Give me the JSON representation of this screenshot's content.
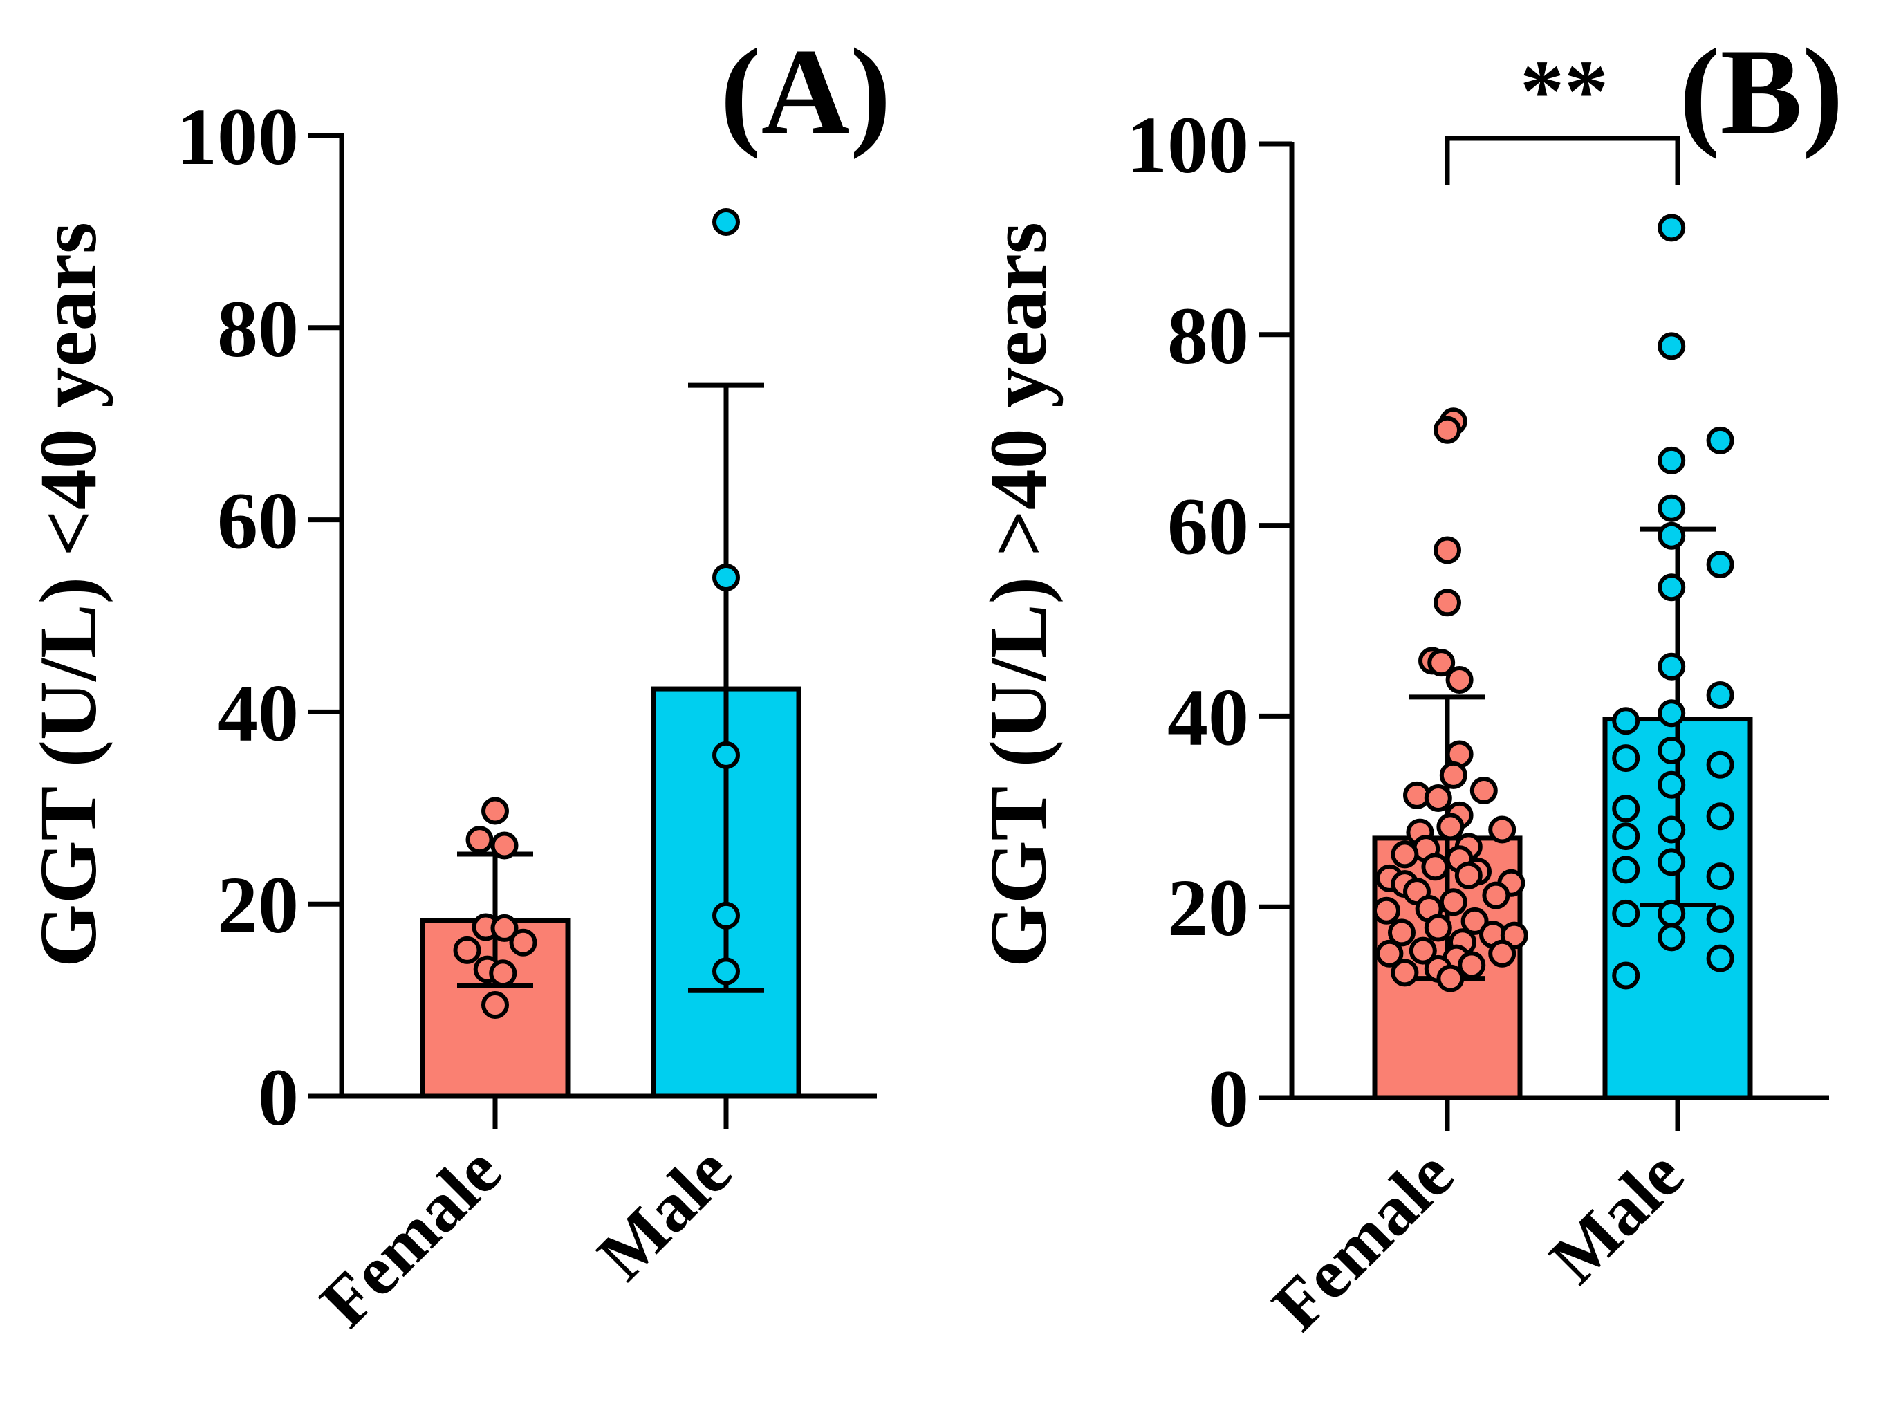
{
  "chart_data": [
    {
      "panel": "(A)",
      "type": "bar",
      "ylabel": "GGT (U/L) <40 years",
      "ylim": [
        0,
        100
      ],
      "yticks": [
        0,
        20,
        40,
        60,
        80,
        100
      ],
      "yticks_text": [
        "0",
        "20",
        "40",
        "60",
        "80",
        "100"
      ],
      "categories": [
        "Female",
        "Male"
      ],
      "bars": [
        {
          "name": "Female",
          "mean": 18.3,
          "error_low": 11.5,
          "error_high": 25.2,
          "color": "#FA8072",
          "points": [
            {
              "jitter": 0.0,
              "y": 29.7
            },
            {
              "jitter": -0.5,
              "y": 26.7
            },
            {
              "jitter": 0.3,
              "y": 26.1
            },
            {
              "jitter": -0.3,
              "y": 17.6
            },
            {
              "jitter": 0.3,
              "y": 17.5
            },
            {
              "jitter": -0.9,
              "y": 15.2
            },
            {
              "jitter": 0.9,
              "y": 16.0
            },
            {
              "jitter": -0.25,
              "y": 13.2
            },
            {
              "jitter": 0.25,
              "y": 12.8
            },
            {
              "jitter": 0.0,
              "y": 9.5
            }
          ]
        },
        {
          "name": "Male",
          "mean": 42.4,
          "error_low": 11.0,
          "error_high": 74.0,
          "color": "#00CFEF",
          "points": [
            {
              "jitter": 0.0,
              "y": 91.0
            },
            {
              "jitter": 0.0,
              "y": 54.0
            },
            {
              "jitter": 0.0,
              "y": 35.5
            },
            {
              "jitter": 0.0,
              "y": 18.8
            },
            {
              "jitter": 0.0,
              "y": 13.0
            }
          ]
        }
      ]
    },
    {
      "panel": "(B)",
      "type": "bar",
      "ylabel": "GGT (U/L) >40 years",
      "ylim": [
        0,
        100
      ],
      "yticks": [
        0,
        20,
        40,
        60,
        80,
        100
      ],
      "yticks_text": [
        "0",
        "20",
        "40",
        "60",
        "80",
        "100"
      ],
      "categories": [
        "Female",
        "Male"
      ],
      "significance": "**",
      "bars": [
        {
          "name": "Female",
          "mean": 27.2,
          "error_low": 12.5,
          "error_high": 42.0,
          "color": "#FA8072",
          "points": [
            {
              "jitter": 0.1,
              "y": 70.9
            },
            {
              "jitter": 0.0,
              "y": 70.0
            },
            {
              "jitter": 0.0,
              "y": 57.4
            },
            {
              "jitter": 0.0,
              "y": 51.9
            },
            {
              "jitter": -0.25,
              "y": 45.8
            },
            {
              "jitter": -0.1,
              "y": 45.6
            },
            {
              "jitter": 0.2,
              "y": 43.8
            },
            {
              "jitter": 0.2,
              "y": 36.0
            },
            {
              "jitter": 0.1,
              "y": 33.8
            },
            {
              "jitter": -0.5,
              "y": 31.7
            },
            {
              "jitter": -0.15,
              "y": 31.4
            },
            {
              "jitter": 0.6,
              "y": 32.2
            },
            {
              "jitter": 0.2,
              "y": 29.6
            },
            {
              "jitter": -0.45,
              "y": 27.8
            },
            {
              "jitter": 0.05,
              "y": 28.4
            },
            {
              "jitter": 0.9,
              "y": 28.1
            },
            {
              "jitter": -0.35,
              "y": 26.1
            },
            {
              "jitter": 0.35,
              "y": 26.3
            },
            {
              "jitter": -0.7,
              "y": 25.5
            },
            {
              "jitter": 0.2,
              "y": 25.0
            },
            {
              "jitter": -0.95,
              "y": 23.0
            },
            {
              "jitter": -0.2,
              "y": 24.2
            },
            {
              "jitter": 0.5,
              "y": 23.7
            },
            {
              "jitter": -0.7,
              "y": 22.4
            },
            {
              "jitter": 0.35,
              "y": 23.3
            },
            {
              "jitter": 1.05,
              "y": 22.5
            },
            {
              "jitter": -0.5,
              "y": 21.6
            },
            {
              "jitter": 0.1,
              "y": 20.5
            },
            {
              "jitter": 0.8,
              "y": 21.2
            },
            {
              "jitter": -1.0,
              "y": 19.6
            },
            {
              "jitter": -0.3,
              "y": 19.8
            },
            {
              "jitter": 0.45,
              "y": 18.5
            },
            {
              "jitter": -0.75,
              "y": 17.3
            },
            {
              "jitter": -0.15,
              "y": 17.8
            },
            {
              "jitter": 0.25,
              "y": 16.3
            },
            {
              "jitter": 0.75,
              "y": 17.1
            },
            {
              "jitter": 1.1,
              "y": 17.0
            },
            {
              "jitter": -0.95,
              "y": 15.1
            },
            {
              "jitter": -0.4,
              "y": 15.4
            },
            {
              "jitter": 0.15,
              "y": 14.6
            },
            {
              "jitter": 0.9,
              "y": 15.1
            },
            {
              "jitter": -0.7,
              "y": 13.1
            },
            {
              "jitter": -0.15,
              "y": 13.5
            },
            {
              "jitter": 0.4,
              "y": 13.9
            },
            {
              "jitter": 0.05,
              "y": 12.5
            }
          ]
        },
        {
          "name": "Male",
          "mean": 39.7,
          "error_low": 20.2,
          "error_high": 59.6,
          "color": "#00CFEF",
          "points": [
            {
              "jitter": -0.1,
              "y": 91.2
            },
            {
              "jitter": -0.1,
              "y": 78.8
            },
            {
              "jitter": 0.7,
              "y": 68.9
            },
            {
              "jitter": -0.1,
              "y": 66.8
            },
            {
              "jitter": -0.1,
              "y": 61.8
            },
            {
              "jitter": -0.1,
              "y": 58.9
            },
            {
              "jitter": 0.7,
              "y": 55.9
            },
            {
              "jitter": -0.1,
              "y": 53.5
            },
            {
              "jitter": -0.1,
              "y": 45.2
            },
            {
              "jitter": 0.7,
              "y": 42.2
            },
            {
              "jitter": -0.1,
              "y": 40.3
            },
            {
              "jitter": -0.85,
              "y": 39.5
            },
            {
              "jitter": -0.1,
              "y": 36.4
            },
            {
              "jitter": -0.85,
              "y": 35.6
            },
            {
              "jitter": 0.7,
              "y": 34.9
            },
            {
              "jitter": -0.1,
              "y": 32.8
            },
            {
              "jitter": -0.85,
              "y": 30.3
            },
            {
              "jitter": 0.7,
              "y": 29.5
            },
            {
              "jitter": -0.1,
              "y": 28.1
            },
            {
              "jitter": -0.85,
              "y": 27.4
            },
            {
              "jitter": -0.1,
              "y": 24.7
            },
            {
              "jitter": -0.85,
              "y": 23.9
            },
            {
              "jitter": 0.7,
              "y": 23.2
            },
            {
              "jitter": -0.1,
              "y": 19.3
            },
            {
              "jitter": -0.85,
              "y": 19.3
            },
            {
              "jitter": 0.7,
              "y": 18.7
            },
            {
              "jitter": -0.1,
              "y": 16.8
            },
            {
              "jitter": 0.7,
              "y": 14.6
            },
            {
              "jitter": -0.85,
              "y": 12.8
            }
          ]
        }
      ]
    }
  ]
}
